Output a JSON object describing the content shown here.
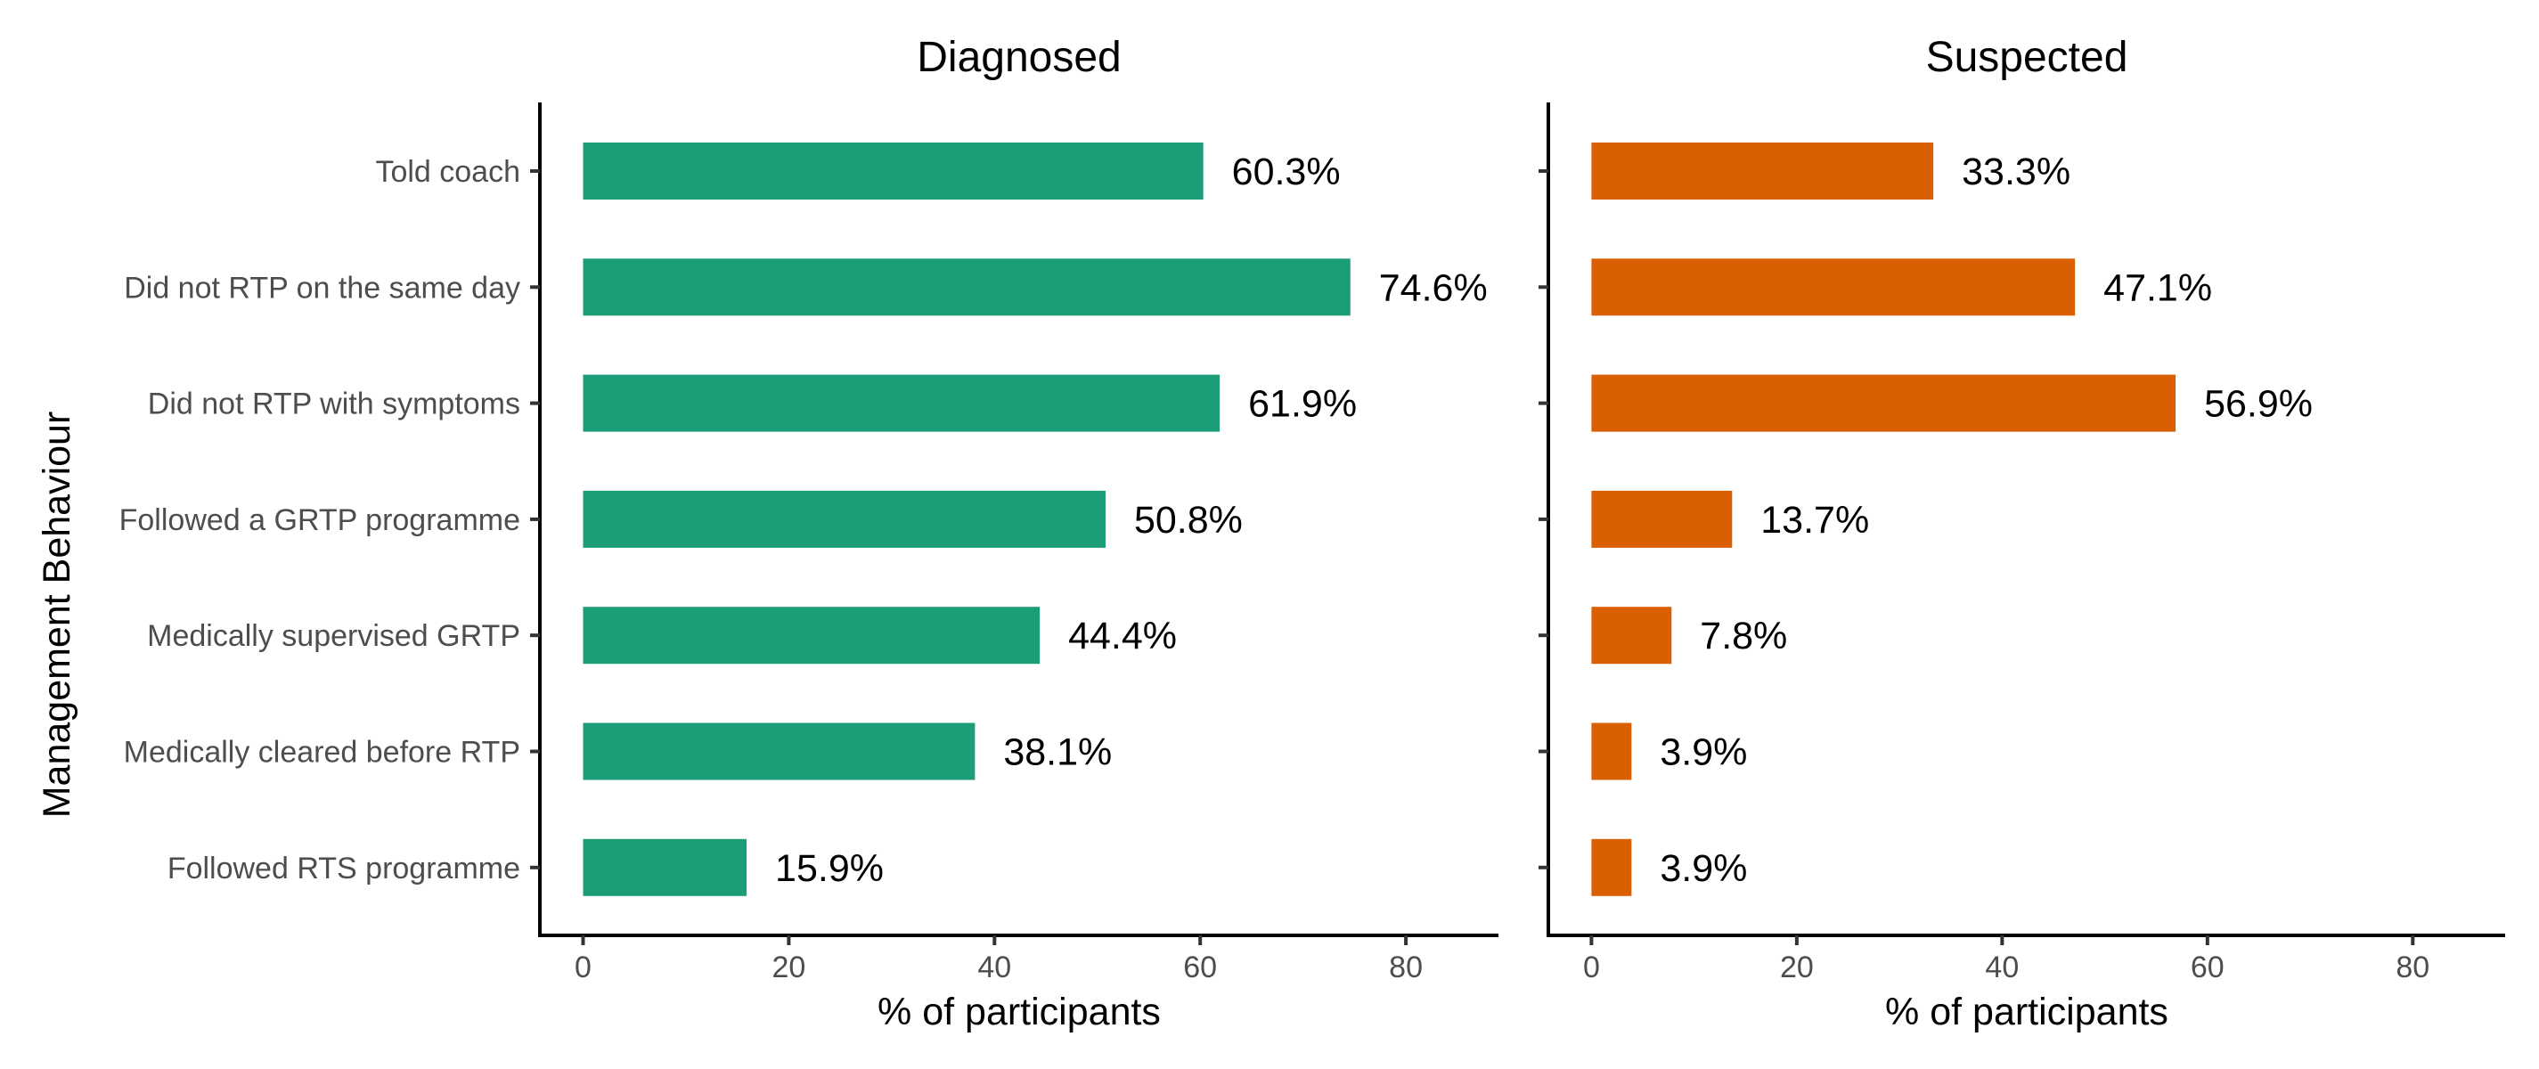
{
  "chart_data": {
    "type": "bar",
    "orientation": "horizontal",
    "ylabel": "Management Behaviour",
    "categories": [
      "Told coach",
      "Did not RTP on the same day",
      "Did not RTP with symptoms",
      "Followed a GRTP programme",
      "Medically supervised GRTP",
      "Medically cleared before RTP",
      "Followed RTS programme"
    ],
    "xticks": [
      "0",
      "20",
      "40",
      "60",
      "80"
    ],
    "xlim": [
      -4.2,
      89
    ],
    "grid": false,
    "legend": "none",
    "panels": [
      {
        "title": "Diagnosed",
        "xlabel": "% of participants",
        "color": "#1b9e77",
        "values": [
          60.3,
          74.6,
          61.9,
          50.8,
          44.4,
          38.1,
          15.9
        ],
        "labels": [
          "60.3%",
          "74.6%",
          "61.9%",
          "50.8%",
          "44.4%",
          "38.1%",
          "15.9%"
        ]
      },
      {
        "title": "Suspected",
        "xlabel": "% of participants",
        "color": "#d95f02",
        "values": [
          33.3,
          47.1,
          56.9,
          13.7,
          7.8,
          3.9,
          3.9
        ],
        "labels": [
          "33.3%",
          "47.1%",
          "56.9%",
          "13.7%",
          "7.8%",
          "3.9%",
          "3.9%"
        ]
      }
    ]
  }
}
